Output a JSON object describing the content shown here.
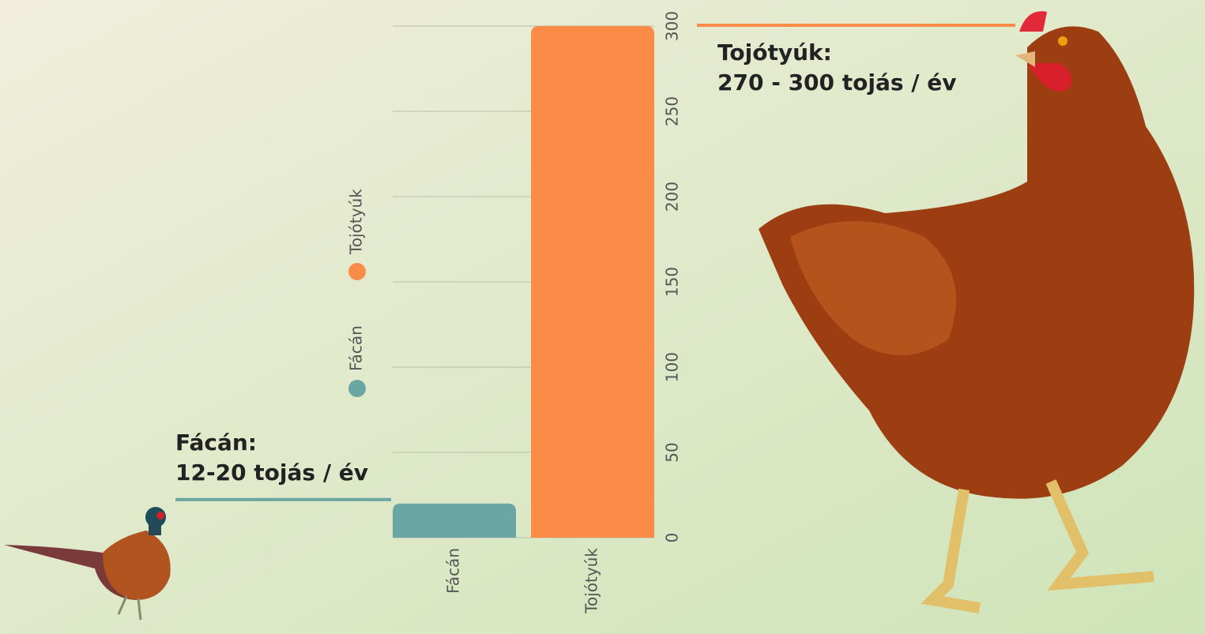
{
  "chart_data": {
    "type": "bar",
    "categories": [
      "Fácán",
      "Tojótyúk"
    ],
    "values": [
      20,
      300
    ],
    "colors": [
      "#6aa6a3",
      "#fb8c47"
    ],
    "ylim": [
      0,
      300
    ],
    "yticks": [
      0,
      50,
      100,
      150,
      200,
      250,
      300
    ],
    "grid": true,
    "annotations": [
      {
        "lines": [
          "Fácán:",
          "12-20 tojás / év"
        ],
        "category": 0
      },
      {
        "lines": [
          "Tojótyúk:",
          "270 - 300 tojás / év"
        ],
        "category": 1
      }
    ]
  }
}
